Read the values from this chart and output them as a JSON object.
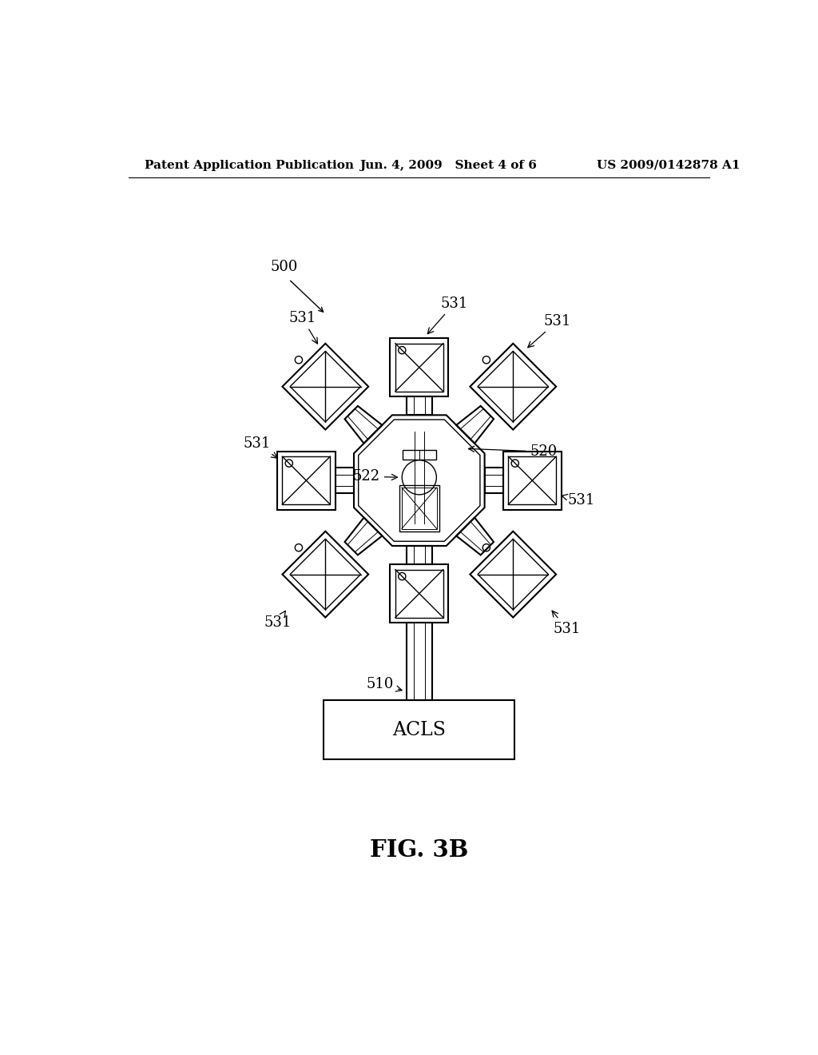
{
  "header_left": "Patent Application Publication",
  "header_mid": "Jun. 4, 2009   Sheet 4 of 6",
  "header_right": "US 2009/0142878 A1",
  "fig_label": "FIG. 3B",
  "acls_label": "ACLS",
  "label_500": "500",
  "label_510": "510",
  "label_520": "520",
  "label_522": "522",
  "label_531": "531",
  "bg_color": "#ffffff",
  "line_color": "#000000",
  "lw": 1.5,
  "lw_thin": 1.0,
  "lw_vt": 0.7
}
